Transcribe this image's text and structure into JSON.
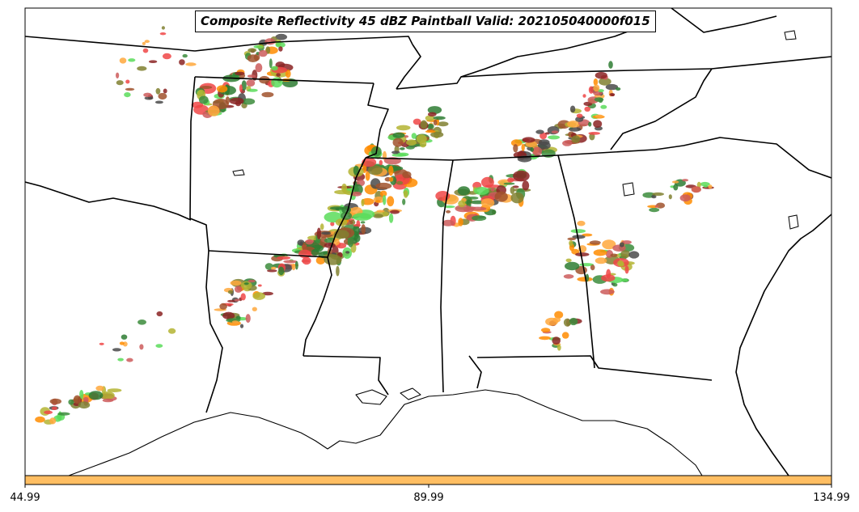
{
  "title": "Composite Reflectivity 45 dBZ Paintball Valid: 202105040000f015",
  "colorbar": {
    "color": "#FFBE62",
    "ticks": [
      "44.99",
      "89.99",
      "134.99"
    ]
  },
  "colors": {
    "members": [
      "#5ADC5A",
      "#F04646",
      "#FF8C00",
      "#FFA83C",
      "#A0522D",
      "#8B2323",
      "#808030",
      "#2E7D32",
      "#4A4A4A",
      "#B4B432",
      "#CD5C5C",
      "#3C8C3C"
    ],
    "border": "#000000",
    "background": "#ffffff"
  }
}
